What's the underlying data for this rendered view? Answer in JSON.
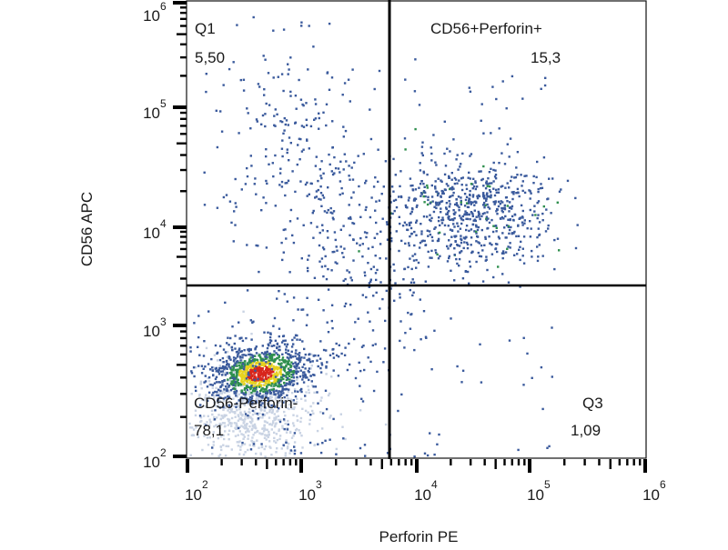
{
  "chart_data": {
    "type": "scatter",
    "subtype": "flow cytometry density dot plot with quadrant gates",
    "xlabel": "Perforin PE",
    "ylabel": "CD56 APC",
    "x_scale": "log",
    "y_scale": "log",
    "x_ticks": [
      {
        "base": "10",
        "exp": "2"
      },
      {
        "base": "10",
        "exp": "3"
      },
      {
        "base": "10",
        "exp": "4"
      },
      {
        "base": "10",
        "exp": "5"
      },
      {
        "base": "10",
        "exp": "6"
      }
    ],
    "y_ticks": [
      {
        "base": "10",
        "exp": "6"
      },
      {
        "base": "10",
        "exp": "5"
      },
      {
        "base": "10",
        "exp": "4"
      },
      {
        "base": "10",
        "exp": "3"
      },
      {
        "base": "10",
        "exp": "2"
      }
    ],
    "gate": {
      "x_threshold": 5000,
      "y_threshold": 3000
    },
    "quadrants": [
      {
        "name": "Q1",
        "value": "5,50",
        "position": "top-left"
      },
      {
        "name": "CD56+Perforin+",
        "value": "15,3",
        "position": "top-right"
      },
      {
        "name": "CD56-Perforin-",
        "value": "78,1",
        "position": "bottom-left"
      },
      {
        "name": "Q3",
        "value": "1,09",
        "position": "bottom-right"
      }
    ],
    "grid": false,
    "density_colors": [
      "#c9d3e3",
      "#3a5a9c",
      "#2f8f4e",
      "#e6d21f",
      "#d8261c"
    ]
  }
}
